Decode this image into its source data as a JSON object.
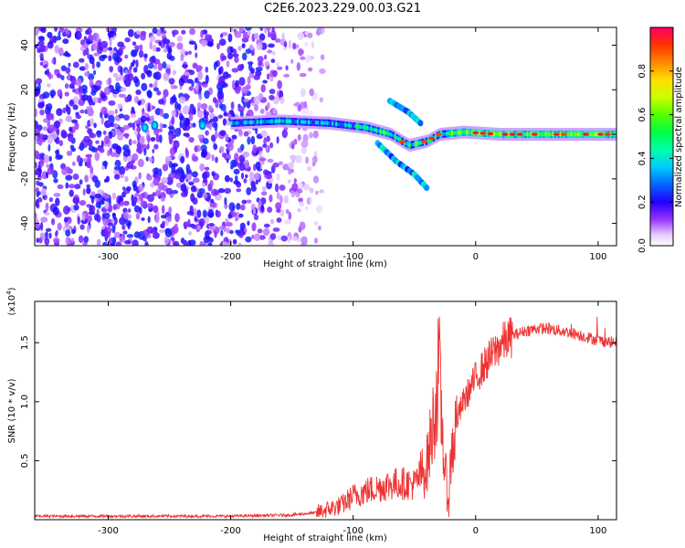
{
  "title": "C2E6.2023.229.00.03.G21",
  "colorbar": {
    "label": "Normalized spectral amplitude",
    "ticks": [
      "0.0",
      "0.2",
      "0.4",
      "0.6",
      "0.8"
    ],
    "range": [
      0,
      1
    ]
  },
  "chart_data": [
    {
      "type": "heatmap",
      "xlabel": "Height of straight line (km)",
      "ylabel": "Frequency (Hz)",
      "xlim": [
        -360,
        115
      ],
      "ylim": [
        -50,
        48
      ],
      "x_ticks": [
        "-300",
        "-200",
        "-100",
        "0",
        "100"
      ],
      "y_ticks": [
        "40",
        "20",
        "0",
        "-20",
        "-40"
      ],
      "description_values": {
        "noise_region_x": [
          -360,
          -145
        ],
        "signal_ridge": [
          {
            "x": -270,
            "y": 3
          },
          {
            "x": -200,
            "y": 5
          },
          {
            "x": -160,
            "y": 6
          },
          {
            "x": -120,
            "y": 5
          },
          {
            "x": -90,
            "y": 3
          },
          {
            "x": -70,
            "y": 0
          },
          {
            "x": -55,
            "y": -5
          },
          {
            "x": -40,
            "y": -3
          },
          {
            "x": -30,
            "y": 0
          },
          {
            "x": -10,
            "y": 1
          },
          {
            "x": 20,
            "y": 0
          },
          {
            "x": 60,
            "y": 0
          },
          {
            "x": 100,
            "y": 0
          }
        ],
        "split_branch": [
          {
            "x": -80,
            "y": -4
          },
          {
            "x": -65,
            "y": -12
          },
          {
            "x": -50,
            "y": -18
          },
          {
            "x": -40,
            "y": -24
          }
        ],
        "upper_branch": [
          {
            "x": -70,
            "y": 15
          },
          {
            "x": -55,
            "y": 10
          },
          {
            "x": -45,
            "y": 5
          }
        ]
      }
    },
    {
      "type": "line",
      "xlabel": "Height of straight line (km)",
      "ylabel": "SNR (10 * v/v)",
      "y_multiplier": "(x10^4)",
      "xlim": [
        -360,
        115
      ],
      "ylim": [
        0,
        1.85
      ],
      "x_ticks": [
        "-300",
        "-200",
        "-100",
        "0",
        "100"
      ],
      "y_ticks": [
        "0.5",
        "1.0",
        "1.5"
      ],
      "series": [
        {
          "color": "#ee3333",
          "points": [
            [
              -360,
              0.03
            ],
            [
              -300,
              0.03
            ],
            [
              -250,
              0.03
            ],
            [
              -200,
              0.03
            ],
            [
              -150,
              0.04
            ],
            [
              -130,
              0.06
            ],
            [
              -110,
              0.12
            ],
            [
              -100,
              0.2
            ],
            [
              -90,
              0.24
            ],
            [
              -80,
              0.27
            ],
            [
              -70,
              0.3
            ],
            [
              -60,
              0.31
            ],
            [
              -50,
              0.3
            ],
            [
              -40,
              0.45
            ],
            [
              -35,
              0.8
            ],
            [
              -32,
              1.05
            ],
            [
              -30,
              1.3
            ],
            [
              -28,
              0.9
            ],
            [
              -25,
              0.4
            ],
            [
              -22,
              0.15
            ],
            [
              -20,
              0.55
            ],
            [
              -15,
              0.85
            ],
            [
              -10,
              1.0
            ],
            [
              -5,
              1.1
            ],
            [
              0,
              1.2
            ],
            [
              10,
              1.35
            ],
            [
              20,
              1.48
            ],
            [
              30,
              1.56
            ],
            [
              40,
              1.6
            ],
            [
              50,
              1.62
            ],
            [
              60,
              1.62
            ],
            [
              70,
              1.6
            ],
            [
              80,
              1.58
            ],
            [
              90,
              1.55
            ],
            [
              100,
              1.52
            ],
            [
              115,
              1.5
            ]
          ]
        }
      ]
    }
  ]
}
